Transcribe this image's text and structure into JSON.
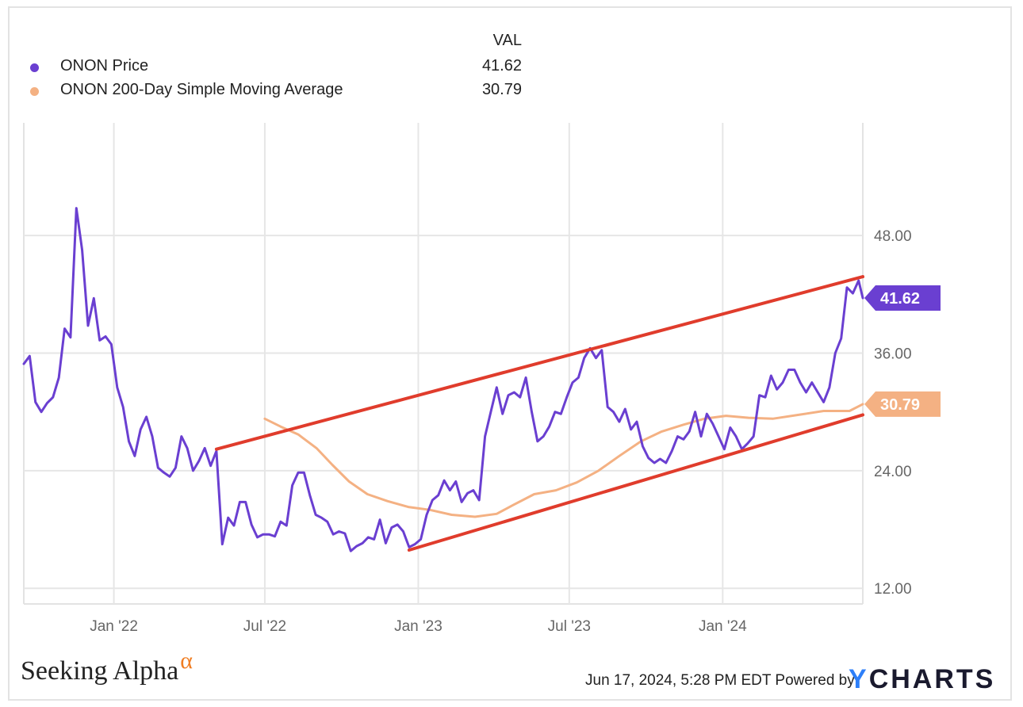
{
  "legend": {
    "header": "VAL",
    "items": [
      {
        "label": "ONON Price",
        "value": "41.62",
        "color": "#6a3fd1"
      },
      {
        "label": "ONON 200-Day Simple Moving Average",
        "value": "30.79",
        "color": "#f4b183"
      }
    ]
  },
  "footer": {
    "brand": "Seeking Alpha",
    "brand_mark": "α",
    "timestamp": "Jun 17, 2024, 5:28 PM EDT Powered by",
    "ycharts_y": "Y",
    "ycharts_rest": "CHARTS"
  },
  "chart_data": {
    "type": "line",
    "title": "",
    "xlabel": "",
    "ylabel": "",
    "ylim": [
      10.4,
      59.5
    ],
    "x_tick_labels": [
      "Jan '22",
      "Jul '22",
      "Jan '23",
      "Jul '23",
      "Jan '24"
    ],
    "x_tick_dates": [
      "2022-01-01",
      "2022-07-01",
      "2023-01-01",
      "2023-07-01",
      "2024-01-01"
    ],
    "y_tick_values": [
      12,
      24,
      36,
      48
    ],
    "y_tick_labels": [
      "12.00",
      "24.00",
      "36.00",
      "48.00"
    ],
    "xrange": [
      "2021-09-15",
      "2024-06-17"
    ],
    "grid": true,
    "legend_position": "top-left",
    "series": [
      {
        "name": "ONON Price",
        "color": "#6a3fd1",
        "last_value_label": "41.62",
        "points": [
          [
            "2021-09-15",
            34.9
          ],
          [
            "2021-09-22",
            35.7
          ],
          [
            "2021-09-29",
            31.0
          ],
          [
            "2021-10-06",
            30.0
          ],
          [
            "2021-10-13",
            30.9
          ],
          [
            "2021-10-20",
            31.5
          ],
          [
            "2021-10-27",
            33.5
          ],
          [
            "2021-11-03",
            38.5
          ],
          [
            "2021-11-10",
            37.6
          ],
          [
            "2021-11-17",
            50.8
          ],
          [
            "2021-11-24",
            46.5
          ],
          [
            "2021-12-01",
            38.8
          ],
          [
            "2021-12-08",
            41.6
          ],
          [
            "2021-12-15",
            37.3
          ],
          [
            "2021-12-22",
            37.7
          ],
          [
            "2021-12-29",
            36.9
          ],
          [
            "2022-01-05",
            32.5
          ],
          [
            "2022-01-12",
            30.5
          ],
          [
            "2022-01-19",
            27.0
          ],
          [
            "2022-01-26",
            25.5
          ],
          [
            "2022-02-02",
            28.2
          ],
          [
            "2022-02-09",
            29.5
          ],
          [
            "2022-02-16",
            27.5
          ],
          [
            "2022-02-23",
            24.3
          ],
          [
            "2022-03-02",
            23.8
          ],
          [
            "2022-03-09",
            23.4
          ],
          [
            "2022-03-16",
            24.3
          ],
          [
            "2022-03-23",
            27.5
          ],
          [
            "2022-03-30",
            26.3
          ],
          [
            "2022-04-06",
            24.0
          ],
          [
            "2022-04-13",
            25.0
          ],
          [
            "2022-04-20",
            26.3
          ],
          [
            "2022-04-27",
            24.5
          ],
          [
            "2022-05-04",
            26.0
          ],
          [
            "2022-05-11",
            16.5
          ],
          [
            "2022-05-18",
            19.2
          ],
          [
            "2022-05-25",
            18.4
          ],
          [
            "2022-06-01",
            20.8
          ],
          [
            "2022-06-08",
            20.8
          ],
          [
            "2022-06-15",
            18.5
          ],
          [
            "2022-06-22",
            17.2
          ],
          [
            "2022-06-29",
            17.5
          ],
          [
            "2022-07-06",
            17.5
          ],
          [
            "2022-07-13",
            17.3
          ],
          [
            "2022-07-20",
            18.8
          ],
          [
            "2022-07-27",
            18.4
          ],
          [
            "2022-08-03",
            22.5
          ],
          [
            "2022-08-10",
            23.8
          ],
          [
            "2022-08-17",
            23.8
          ],
          [
            "2022-08-24",
            21.5
          ],
          [
            "2022-08-31",
            19.5
          ],
          [
            "2022-09-07",
            19.2
          ],
          [
            "2022-09-14",
            18.8
          ],
          [
            "2022-09-21",
            17.5
          ],
          [
            "2022-09-28",
            17.8
          ],
          [
            "2022-10-05",
            17.6
          ],
          [
            "2022-10-12",
            15.8
          ],
          [
            "2022-10-19",
            16.3
          ],
          [
            "2022-10-26",
            16.6
          ],
          [
            "2022-11-02",
            17.2
          ],
          [
            "2022-11-09",
            17.0
          ],
          [
            "2022-11-16",
            19.0
          ],
          [
            "2022-11-23",
            16.6
          ],
          [
            "2022-11-30",
            18.2
          ],
          [
            "2022-12-07",
            18.5
          ],
          [
            "2022-12-14",
            17.8
          ],
          [
            "2022-12-21",
            16.2
          ],
          [
            "2022-12-28",
            16.5
          ],
          [
            "2023-01-04",
            17.0
          ],
          [
            "2023-01-11",
            19.5
          ],
          [
            "2023-01-18",
            21.0
          ],
          [
            "2023-01-25",
            21.5
          ],
          [
            "2023-02-01",
            23.0
          ],
          [
            "2023-02-08",
            22.0
          ],
          [
            "2023-02-15",
            22.9
          ],
          [
            "2023-02-22",
            20.8
          ],
          [
            "2023-03-01",
            21.7
          ],
          [
            "2023-03-08",
            22.0
          ],
          [
            "2023-03-15",
            21.0
          ],
          [
            "2023-03-22",
            27.5
          ],
          [
            "2023-03-29",
            30.0
          ],
          [
            "2023-04-05",
            32.5
          ],
          [
            "2023-04-12",
            29.8
          ],
          [
            "2023-04-19",
            31.7
          ],
          [
            "2023-04-26",
            32.0
          ],
          [
            "2023-05-03",
            31.5
          ],
          [
            "2023-05-10",
            33.5
          ],
          [
            "2023-05-17",
            30.0
          ],
          [
            "2023-05-24",
            27.0
          ],
          [
            "2023-05-31",
            27.5
          ],
          [
            "2023-06-07",
            28.5
          ],
          [
            "2023-06-14",
            30.0
          ],
          [
            "2023-06-21",
            29.8
          ],
          [
            "2023-06-28",
            31.5
          ],
          [
            "2023-07-05",
            33.0
          ],
          [
            "2023-07-12",
            33.5
          ],
          [
            "2023-07-19",
            35.5
          ],
          [
            "2023-07-26",
            36.5
          ],
          [
            "2023-08-02",
            35.5
          ],
          [
            "2023-08-09",
            36.3
          ],
          [
            "2023-08-16",
            30.5
          ],
          [
            "2023-08-23",
            30.0
          ],
          [
            "2023-08-30",
            29.0
          ],
          [
            "2023-09-06",
            30.3
          ],
          [
            "2023-09-13",
            28.2
          ],
          [
            "2023-09-20",
            29.0
          ],
          [
            "2023-09-27",
            26.5
          ],
          [
            "2023-10-04",
            25.3
          ],
          [
            "2023-10-11",
            24.8
          ],
          [
            "2023-10-18",
            25.2
          ],
          [
            "2023-10-25",
            24.8
          ],
          [
            "2023-11-01",
            26.0
          ],
          [
            "2023-11-08",
            27.5
          ],
          [
            "2023-11-15",
            27.2
          ],
          [
            "2023-11-22",
            28.0
          ],
          [
            "2023-11-29",
            30.0
          ],
          [
            "2023-12-06",
            27.5
          ],
          [
            "2023-12-13",
            29.8
          ],
          [
            "2023-12-20",
            28.8
          ],
          [
            "2023-12-27",
            27.5
          ],
          [
            "2024-01-03",
            26.2
          ],
          [
            "2024-01-10",
            28.4
          ],
          [
            "2024-01-17",
            27.5
          ],
          [
            "2024-01-24",
            26.2
          ],
          [
            "2024-01-31",
            26.8
          ],
          [
            "2024-02-07",
            27.5
          ],
          [
            "2024-02-14",
            31.7
          ],
          [
            "2024-02-21",
            31.5
          ],
          [
            "2024-02-28",
            33.7
          ],
          [
            "2024-03-06",
            32.3
          ],
          [
            "2024-03-13",
            33.0
          ],
          [
            "2024-03-20",
            34.3
          ],
          [
            "2024-03-27",
            34.3
          ],
          [
            "2024-04-03",
            33.0
          ],
          [
            "2024-04-10",
            32.0
          ],
          [
            "2024-04-17",
            33.0
          ],
          [
            "2024-04-24",
            32.0
          ],
          [
            "2024-05-01",
            31.0
          ],
          [
            "2024-05-08",
            32.5
          ],
          [
            "2024-05-15",
            36.0
          ],
          [
            "2024-05-22",
            37.5
          ],
          [
            "2024-05-29",
            42.7
          ],
          [
            "2024-06-05",
            42.1
          ],
          [
            "2024-06-12",
            43.4
          ],
          [
            "2024-06-17",
            41.62
          ]
        ]
      },
      {
        "name": "ONON 200-Day Simple Moving Average",
        "color": "#f4b183",
        "last_value_label": "30.79",
        "points": [
          [
            "2022-07-01",
            29.3
          ],
          [
            "2022-07-20",
            28.5
          ],
          [
            "2022-08-10",
            27.7
          ],
          [
            "2022-09-01",
            26.3
          ],
          [
            "2022-09-20",
            24.6
          ],
          [
            "2022-10-10",
            22.9
          ],
          [
            "2022-11-01",
            21.6
          ],
          [
            "2022-11-25",
            20.9
          ],
          [
            "2022-12-20",
            20.3
          ],
          [
            "2023-01-15",
            20.0
          ],
          [
            "2023-02-10",
            19.5
          ],
          [
            "2023-03-10",
            19.3
          ],
          [
            "2023-04-05",
            19.6
          ],
          [
            "2023-04-25",
            20.5
          ],
          [
            "2023-05-20",
            21.6
          ],
          [
            "2023-06-15",
            22.0
          ],
          [
            "2023-07-10",
            22.8
          ],
          [
            "2023-08-05",
            24.0
          ],
          [
            "2023-08-30",
            25.5
          ],
          [
            "2023-09-25",
            27.0
          ],
          [
            "2023-10-20",
            28.0
          ],
          [
            "2023-11-15",
            28.7
          ],
          [
            "2023-12-10",
            29.3
          ],
          [
            "2024-01-05",
            29.6
          ],
          [
            "2024-02-01",
            29.4
          ],
          [
            "2024-03-01",
            29.3
          ],
          [
            "2024-04-01",
            29.7
          ],
          [
            "2024-05-01",
            30.1
          ],
          [
            "2024-06-01",
            30.1
          ],
          [
            "2024-06-17",
            30.79
          ]
        ]
      }
    ],
    "overlays": [
      {
        "color": "#e03c2c",
        "points": [
          [
            "2022-05-04",
            26.2
          ],
          [
            "2024-06-17",
            43.8
          ]
        ]
      },
      {
        "color": "#e03c2c",
        "points": [
          [
            "2022-12-21",
            15.9
          ],
          [
            "2024-06-17",
            29.7
          ]
        ]
      }
    ]
  }
}
